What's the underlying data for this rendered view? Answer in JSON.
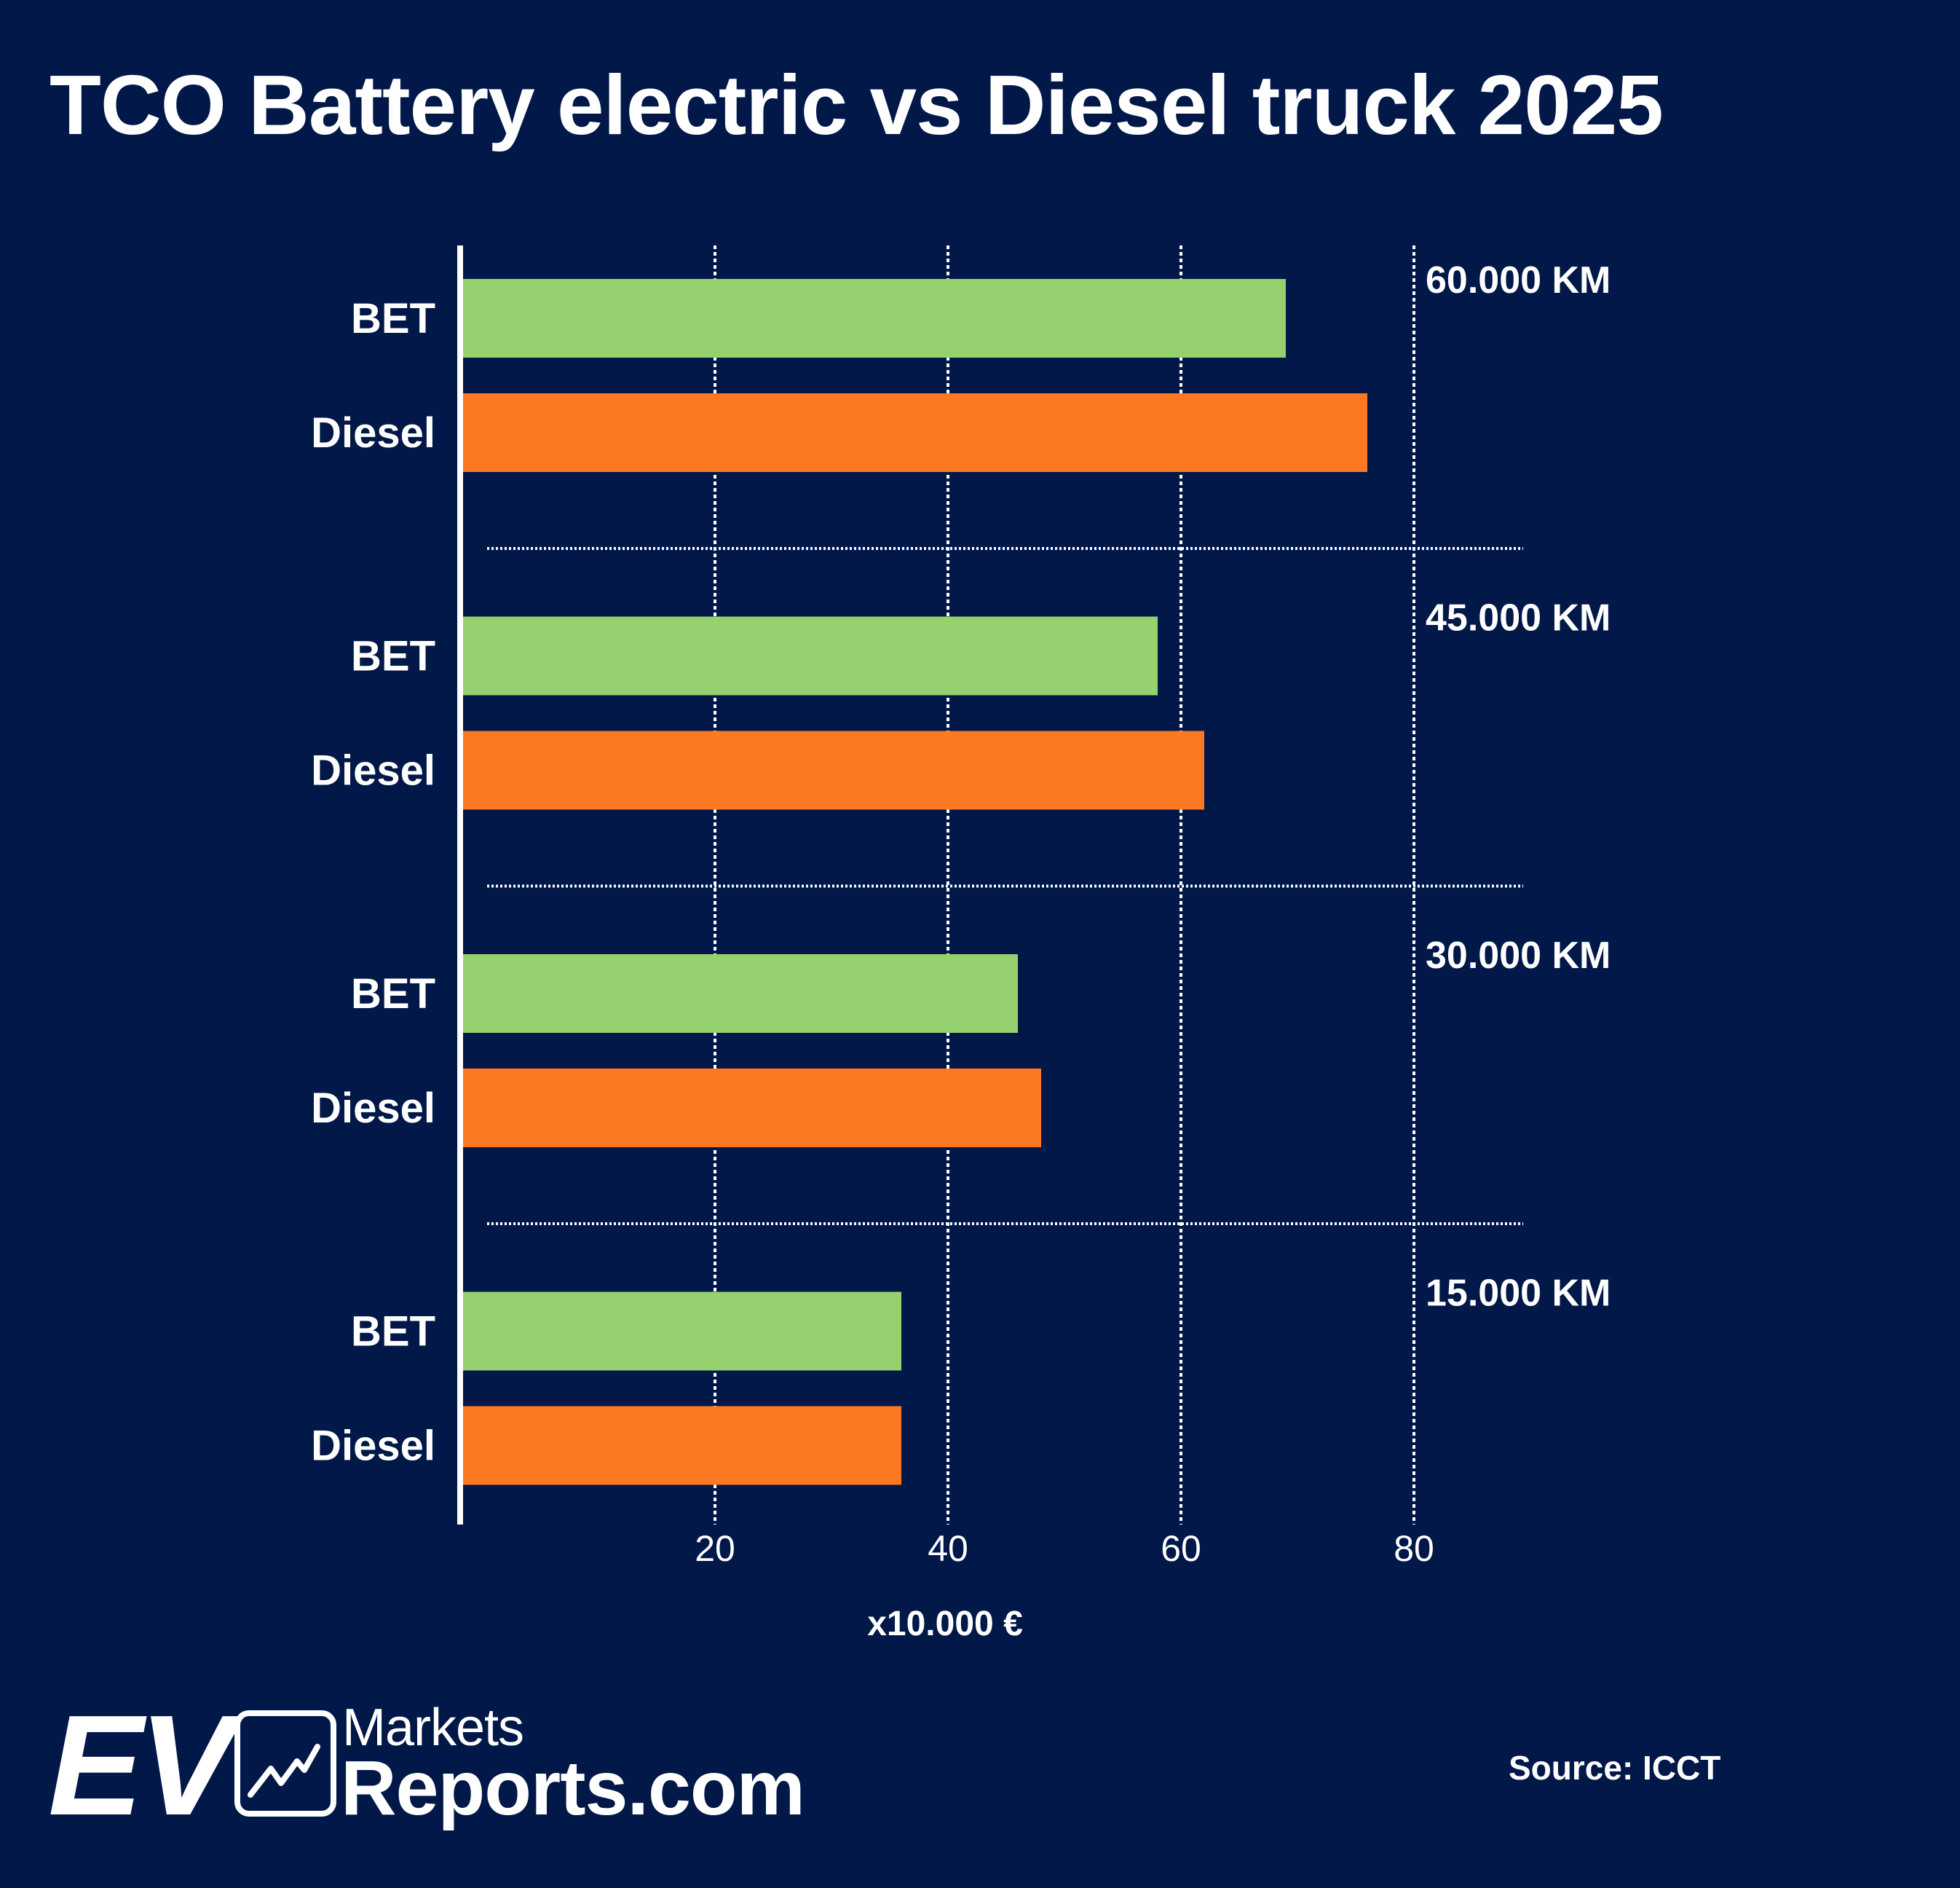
{
  "title": "TCO Battery electric vs Diesel truck 2025",
  "colors": {
    "background": "#011848",
    "bet": "#96d170",
    "diesel": "#fd7822",
    "text": "#ffffff"
  },
  "chart_data": {
    "type": "bar",
    "orientation": "horizontal",
    "title": "TCO Battery electric vs Diesel truck 2025",
    "xlabel": "x10.000 €",
    "ylabel": "",
    "xlim": [
      0,
      90
    ],
    "x_ticks": [
      20,
      40,
      60,
      80
    ],
    "grid": true,
    "legend": "none",
    "groups": [
      {
        "label": "60.000 KM",
        "bars": [
          {
            "name": "BET",
            "value": 69
          },
          {
            "name": "Diesel",
            "value": 76
          }
        ]
      },
      {
        "label": "45.000 KM",
        "bars": [
          {
            "name": "BET",
            "value": 58
          },
          {
            "name": "Diesel",
            "value": 62
          }
        ]
      },
      {
        "label": "30.000 KM",
        "bars": [
          {
            "name": "BET",
            "value": 46
          },
          {
            "name": "Diesel",
            "value": 48
          }
        ]
      },
      {
        "label": "15.000 KM",
        "bars": [
          {
            "name": "BET",
            "value": 36
          },
          {
            "name": "Diesel",
            "value": 36
          }
        ]
      }
    ],
    "series": [
      {
        "name": "BET",
        "values": [
          69,
          58,
          46,
          36
        ]
      },
      {
        "name": "Diesel",
        "values": [
          76,
          62,
          48,
          36
        ]
      }
    ],
    "categories": [
      "60.000 KM",
      "45.000 KM",
      "30.000 KM",
      "15.000 KM"
    ]
  },
  "logo": {
    "ev": "EV",
    "markets": "Markets",
    "reports": "Reports.com",
    "icon": "trend-chart-icon"
  },
  "source": "Source: ICCT"
}
